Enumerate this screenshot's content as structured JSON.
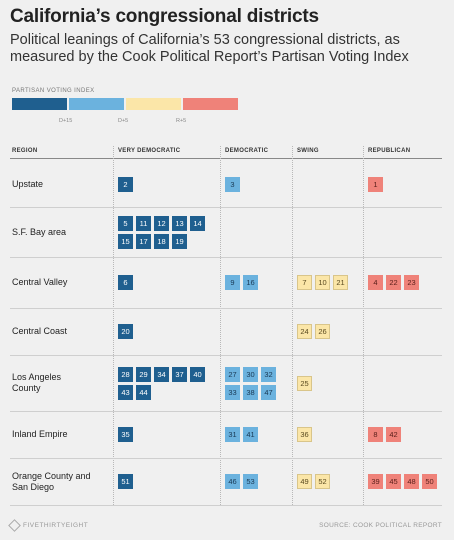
{
  "title": "California’s congressional districts",
  "subtitle": "Political leanings of California’s 53 congressional districts, as measured by the Cook Political Report’s Partisan Voting Index",
  "legend": {
    "label": "PARTISAN VOTING INDEX",
    "ticks": [
      "D+15",
      "D+5",
      "R+5"
    ]
  },
  "columns": {
    "region": "REGION",
    "very_democratic": "VERY DEMOCRATIC",
    "democratic": "DEMOCRATIC",
    "swing": "SWING",
    "republican": "REPUBLICAN"
  },
  "colors": {
    "very_democratic": "#1f5f8f",
    "democratic": "#6bb2de",
    "swing": "#fbe6a8",
    "republican": "#ef8279"
  },
  "chart_data": {
    "type": "table",
    "categories": [
      "VERY DEMOCRATIC",
      "DEMOCRATIC",
      "SWING",
      "REPUBLICAN"
    ],
    "rows": [
      {
        "region": "Upstate",
        "very_democratic": [
          2
        ],
        "democratic": [
          3
        ],
        "swing": [],
        "republican": [
          1
        ]
      },
      {
        "region": "S.F. Bay area",
        "very_democratic": [
          5,
          11,
          12,
          13,
          14,
          15,
          17,
          18,
          19
        ],
        "democratic": [],
        "swing": [],
        "republican": []
      },
      {
        "region": "Central Valley",
        "very_democratic": [
          6
        ],
        "democratic": [
          9,
          16
        ],
        "swing": [
          7,
          10,
          21
        ],
        "republican": [
          4,
          22,
          23
        ]
      },
      {
        "region": "Central Coast",
        "very_democratic": [
          20
        ],
        "democratic": [],
        "swing": [
          24,
          26
        ],
        "republican": []
      },
      {
        "region": "Los Angeles\nCounty",
        "very_democratic": [
          28,
          29,
          34,
          37,
          40,
          43,
          44
        ],
        "democratic": [
          27,
          30,
          32,
          33,
          38,
          47
        ],
        "swing": [
          25
        ],
        "republican": []
      },
      {
        "region": "Inland Empire",
        "very_democratic": [
          35
        ],
        "democratic": [
          31,
          41
        ],
        "swing": [
          36
        ],
        "republican": [
          8,
          42
        ]
      },
      {
        "region": "Orange County and\nSan Diego",
        "very_democratic": [
          51
        ],
        "democratic": [
          46,
          53
        ],
        "swing": [
          49,
          52
        ],
        "republican": [
          39,
          45,
          48,
          50
        ]
      }
    ]
  },
  "footer": {
    "logo": "FIVETHIRTYEIGHT",
    "source": "SOURCE: COOK POLITICAL REPORT"
  }
}
